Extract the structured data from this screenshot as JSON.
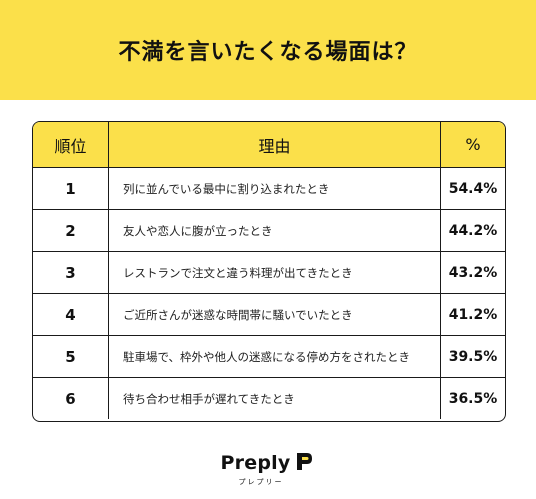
{
  "header": {
    "title": "不満を言いたくなる場面は？",
    "accent_color": "#FBE04A"
  },
  "brand": {
    "name": "Preply",
    "subtitle": "プレプリー",
    "icon": "preply-logo-icon"
  },
  "chart_data": {
    "type": "table",
    "columns": [
      "順位",
      "理由",
      "%"
    ],
    "rows": [
      {
        "rank": "1",
        "reason": "列に並んでいる最中に割り込まれたとき",
        "percent": "54.4%"
      },
      {
        "rank": "2",
        "reason": "友人や恋人に腹が立ったとき",
        "percent": "44.2%"
      },
      {
        "rank": "3",
        "reason": "レストランで注文と違う料理が出てきたとき",
        "percent": "43.2%"
      },
      {
        "rank": "4",
        "reason": "ご近所さんが迷惑な時間帯に騒いでいたとき",
        "percent": "41.2%"
      },
      {
        "rank": "5",
        "reason": "駐車場で、枠外や他人の迷惑になる停め方をされたとき",
        "percent": "39.5%"
      },
      {
        "rank": "6",
        "reason": "待ち合わせ相手が遅れてきたとき",
        "percent": "36.5%"
      }
    ]
  }
}
